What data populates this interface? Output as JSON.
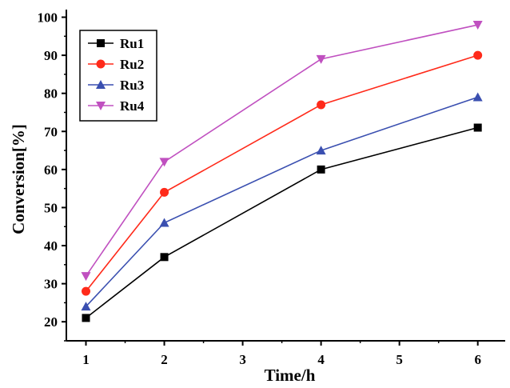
{
  "chart_data": {
    "type": "line",
    "xlabel": "Time/h",
    "ylabel": "Conversion[%]",
    "x": [
      1,
      2,
      4,
      6
    ],
    "xlim": [
      0.75,
      6.35
    ],
    "ylim": [
      15,
      102
    ],
    "xticks": [
      1,
      2,
      3,
      4,
      5,
      6
    ],
    "yticks": [
      20,
      30,
      40,
      50,
      60,
      70,
      80,
      90,
      100
    ],
    "grid": false,
    "legend_position": "top-left",
    "series": [
      {
        "name": "Ru1",
        "values": [
          21,
          37,
          60,
          71
        ],
        "color": "#000000",
        "marker": "square"
      },
      {
        "name": "Ru2",
        "values": [
          28,
          54,
          77,
          90
        ],
        "color": "#ff2a1a",
        "marker": "circle"
      },
      {
        "name": "Ru3",
        "values": [
          24,
          46,
          65,
          79
        ],
        "color": "#3a4fb0",
        "marker": "triangle-up"
      },
      {
        "name": "Ru4",
        "values": [
          32,
          62,
          89,
          98
        ],
        "color": "#c050c0",
        "marker": "triangle-down"
      }
    ]
  }
}
